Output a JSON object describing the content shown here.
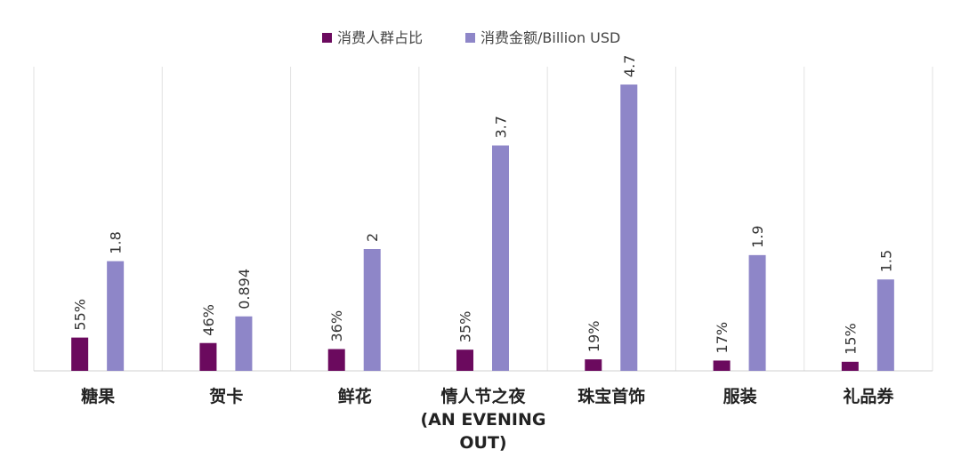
{
  "chart_data": {
    "type": "bar",
    "categories": [
      "糖果",
      "贺卡",
      "鲜花",
      "情人节之夜\n(AN EVENING\nOUT)",
      "珠宝首饰",
      "服装",
      "礼品券"
    ],
    "series": [
      {
        "name": "消费人群占比",
        "values": [
          55,
          46,
          36,
          35,
          19,
          17,
          15
        ],
        "labels": [
          "55%",
          "46%",
          "36%",
          "35%",
          "19%",
          "17%",
          "15%"
        ],
        "color": "#6b0a5e"
      },
      {
        "name": "消费金额/Billion USD",
        "values": [
          1.8,
          0.894,
          2,
          3.7,
          4.7,
          1.9,
          1.5
        ],
        "labels": [
          "1.8",
          "0.894",
          "2",
          "3.7",
          "4.7",
          "1.9",
          "1.5"
        ],
        "color": "#8e86c8"
      }
    ],
    "legend_position": "top-center",
    "grid": false,
    "category_separators": true
  }
}
